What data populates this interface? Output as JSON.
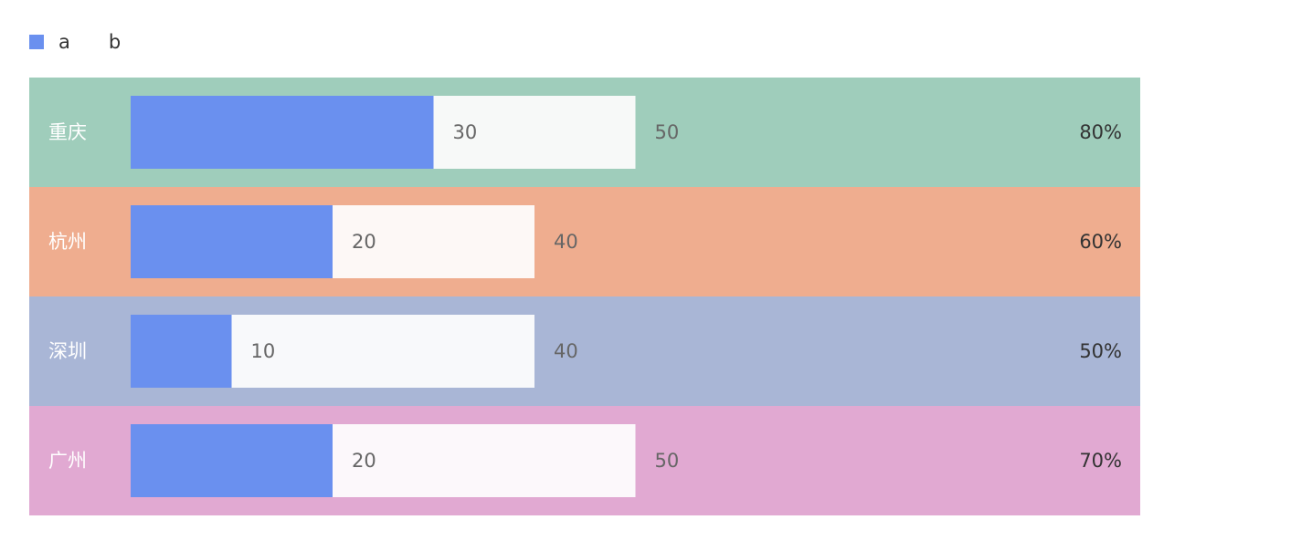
{
  "legend": [
    {
      "label": "a",
      "color": "#6a90ef"
    },
    {
      "label": "b",
      "color": null
    }
  ],
  "chart_data": {
    "type": "bar",
    "orientation": "horizontal",
    "title": "",
    "categories": [
      "重庆",
      "杭州",
      "深圳",
      "广州"
    ],
    "series": [
      {
        "name": "a",
        "values": [
          30,
          20,
          10,
          20
        ]
      },
      {
        "name": "b",
        "values": [
          50,
          40,
          40,
          50
        ]
      }
    ],
    "percent_labels": [
      "80%",
      "60%",
      "50%",
      "70%"
    ],
    "row_colors": [
      "#9fcdbb",
      "#efad8f",
      "#a9b6d6",
      "#e1a9d2"
    ],
    "track_colors": [
      "#f7f9f8",
      "#fdf8f6",
      "#f8f9fb",
      "#fcf8fb"
    ],
    "bar_color": "#6a90ef",
    "xlim": [
      0,
      90
    ],
    "legend_position": "top-left",
    "grid": false
  }
}
